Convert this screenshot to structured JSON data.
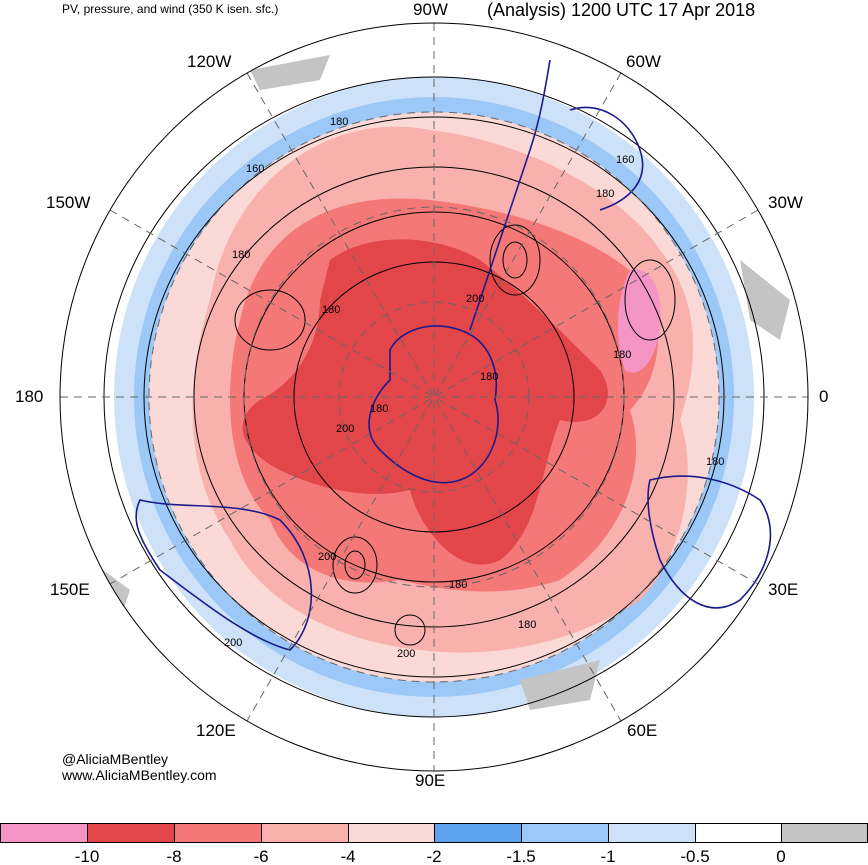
{
  "header": {
    "product": "PV, pressure, and wind (350 K isen. sfc.)",
    "title": "(Analysis) 1200 UTC 17 Apr 2018"
  },
  "longitude_labels": {
    "top": "90W",
    "upper_left": "120W",
    "upper_right": "60W",
    "left_upper": "150W",
    "right_upper": "30W",
    "left": "180",
    "right": "0",
    "left_lower": "150E",
    "right_lower": "30E",
    "lower_left": "120E",
    "lower_right": "60E",
    "bottom": "90E"
  },
  "contour_labels": [
    "180",
    "160",
    "180",
    "180",
    "200",
    "180",
    "180",
    "160",
    "180",
    "200",
    "180",
    "180",
    "180",
    "180",
    "200",
    "200",
    "200"
  ],
  "credits": {
    "handle": "@AliciaMBentley",
    "site": "www.AliciaMBentley.com"
  },
  "colorbar": {
    "ticks": [
      "-10",
      "-8",
      "-6",
      "-4",
      "-2",
      "-1.5",
      "-1",
      "-0.5",
      "0"
    ],
    "colors": [
      "#f595c6",
      "#e24649",
      "#f47877",
      "#f9b1ae",
      "#fbd9d6",
      "#5fa2ef",
      "#9cc8f7",
      "#cde2f8",
      "#ffffff",
      "#c4c4c4"
    ]
  },
  "colors": {
    "coastline": "#1a1a8c",
    "contour": "#000000",
    "grid": "#666666"
  }
}
